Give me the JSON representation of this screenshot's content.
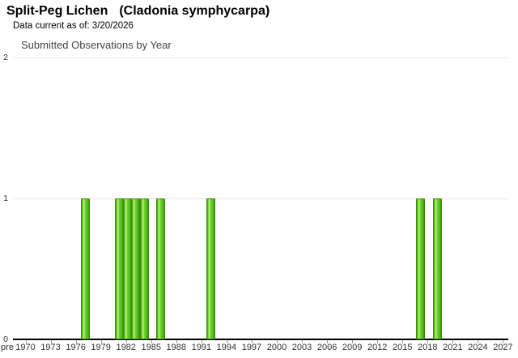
{
  "page": {
    "title_common": "Split-Peg Lichen",
    "title_scientific": "(Cladonia symphycarpa)",
    "subtitle": "Data current as of: 3/20/2026"
  },
  "chart_data": {
    "type": "bar",
    "title": "Submitted Observations by Year",
    "xlabel": "",
    "ylabel": "",
    "ylim": [
      0,
      2
    ],
    "yticks": [
      0,
      1,
      2
    ],
    "x_tick_labels": [
      "pre",
      "1970",
      "1973",
      "1976",
      "1979",
      "1982",
      "1985",
      "1988",
      "1991",
      "1994",
      "1997",
      "2000",
      "2003",
      "2006",
      "2009",
      "2012",
      "2015",
      "2018",
      "2021",
      "2024",
      "2027"
    ],
    "x_axis_note": "one category per year from pre-1970 through 2027; labels shown every 3 years",
    "bars": [
      {
        "year": 1977,
        "count": 1
      },
      {
        "year": 1981,
        "count": 1
      },
      {
        "year": 1982,
        "count": 1
      },
      {
        "year": 1983,
        "count": 1
      },
      {
        "year": 1984,
        "count": 1
      },
      {
        "year": 1986,
        "count": 1
      },
      {
        "year": 1992,
        "count": 1
      },
      {
        "year": 2017,
        "count": 1
      },
      {
        "year": 2019,
        "count": 1
      }
    ],
    "all_other_years_count": 0,
    "grid": true,
    "legend": false,
    "colors": {
      "bar_fill": "#5cc21e",
      "bar_border": "#3f8a0e",
      "gridline": "#e4e4e4",
      "axis_line": "#000000",
      "tick_text": "#333333",
      "chart_title_text": "#444444"
    }
  }
}
